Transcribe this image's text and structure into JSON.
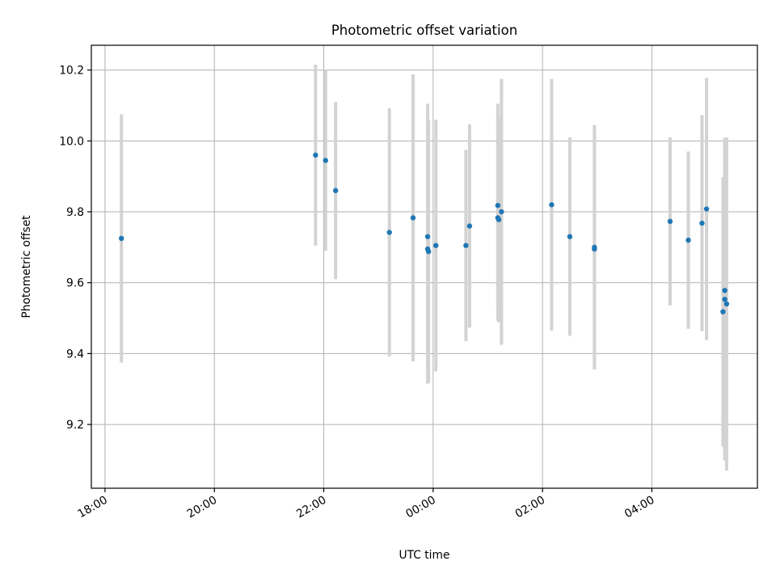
{
  "chart_data": {
    "type": "scatter",
    "title": "Photometric offset variation",
    "xlabel": "UTC time",
    "ylabel": "Photometric offset",
    "x_axis_kind": "time",
    "x_tick_labels": [
      "18:00",
      "20:00",
      "22:00",
      "00:00",
      "02:00",
      "04:00"
    ],
    "y_tick_labels": [
      "9.2",
      "9.4",
      "9.6",
      "9.8",
      "10.0",
      "10.2"
    ],
    "y_ticks": [
      9.2,
      9.4,
      9.6,
      9.8,
      10.0,
      10.2
    ],
    "ylim": [
      9.02,
      10.27
    ],
    "xlim_hours": [
      17.75,
      29.93
    ],
    "x_tick_hours": [
      18,
      20,
      22,
      24,
      26,
      28
    ],
    "grid": true,
    "colors": {
      "point": "#1f77b4",
      "errorbar": "#d3d3d3"
    },
    "points": [
      {
        "t": "18:18",
        "y": 9.725,
        "err": 0.35
      },
      {
        "t": "21:51",
        "y": 9.96,
        "err": 0.255
      },
      {
        "t": "22:02",
        "y": 9.945,
        "err": 0.255
      },
      {
        "t": "22:13",
        "y": 9.86,
        "err": 0.25
      },
      {
        "t": "23:12",
        "y": 9.742,
        "err": 0.35
      },
      {
        "t": "23:38",
        "y": 9.783,
        "err": 0.405
      },
      {
        "t": "23:54",
        "y": 9.73,
        "err": 0.375
      },
      {
        "t": "23:54",
        "y": 9.695,
        "err": 0.38
      },
      {
        "t": "23:55",
        "y": 9.688,
        "err": 0.37
      },
      {
        "t": "00:03",
        "y": 9.705,
        "err": 0.355
      },
      {
        "t": "00:36",
        "y": 9.705,
        "err": 0.27
      },
      {
        "t": "00:40",
        "y": 9.76,
        "err": 0.287
      },
      {
        "t": "01:11",
        "y": 9.818,
        "err": 0.287
      },
      {
        "t": "01:11",
        "y": 9.783,
        "err": 0.29
      },
      {
        "t": "01:12",
        "y": 9.778,
        "err": 0.29
      },
      {
        "t": "01:15",
        "y": 9.8,
        "err": 0.375
      },
      {
        "t": "02:10",
        "y": 9.82,
        "err": 0.355
      },
      {
        "t": "02:30",
        "y": 9.73,
        "err": 0.28
      },
      {
        "t": "02:57",
        "y": 9.7,
        "err": 0.345
      },
      {
        "t": "02:57",
        "y": 9.695,
        "err": 0.34
      },
      {
        "t": "04:20",
        "y": 9.773,
        "err": 0.237
      },
      {
        "t": "04:40",
        "y": 9.72,
        "err": 0.25
      },
      {
        "t": "04:55",
        "y": 9.768,
        "err": 0.305
      },
      {
        "t": "05:00",
        "y": 9.808,
        "err": 0.37
      },
      {
        "t": "05:18",
        "y": 9.518,
        "err": 0.38
      },
      {
        "t": "05:20",
        "y": 9.578,
        "err": 0.43
      },
      {
        "t": "05:20",
        "y": 9.553,
        "err": 0.455
      },
      {
        "t": "05:22",
        "y": 9.54,
        "err": 0.47
      }
    ]
  }
}
